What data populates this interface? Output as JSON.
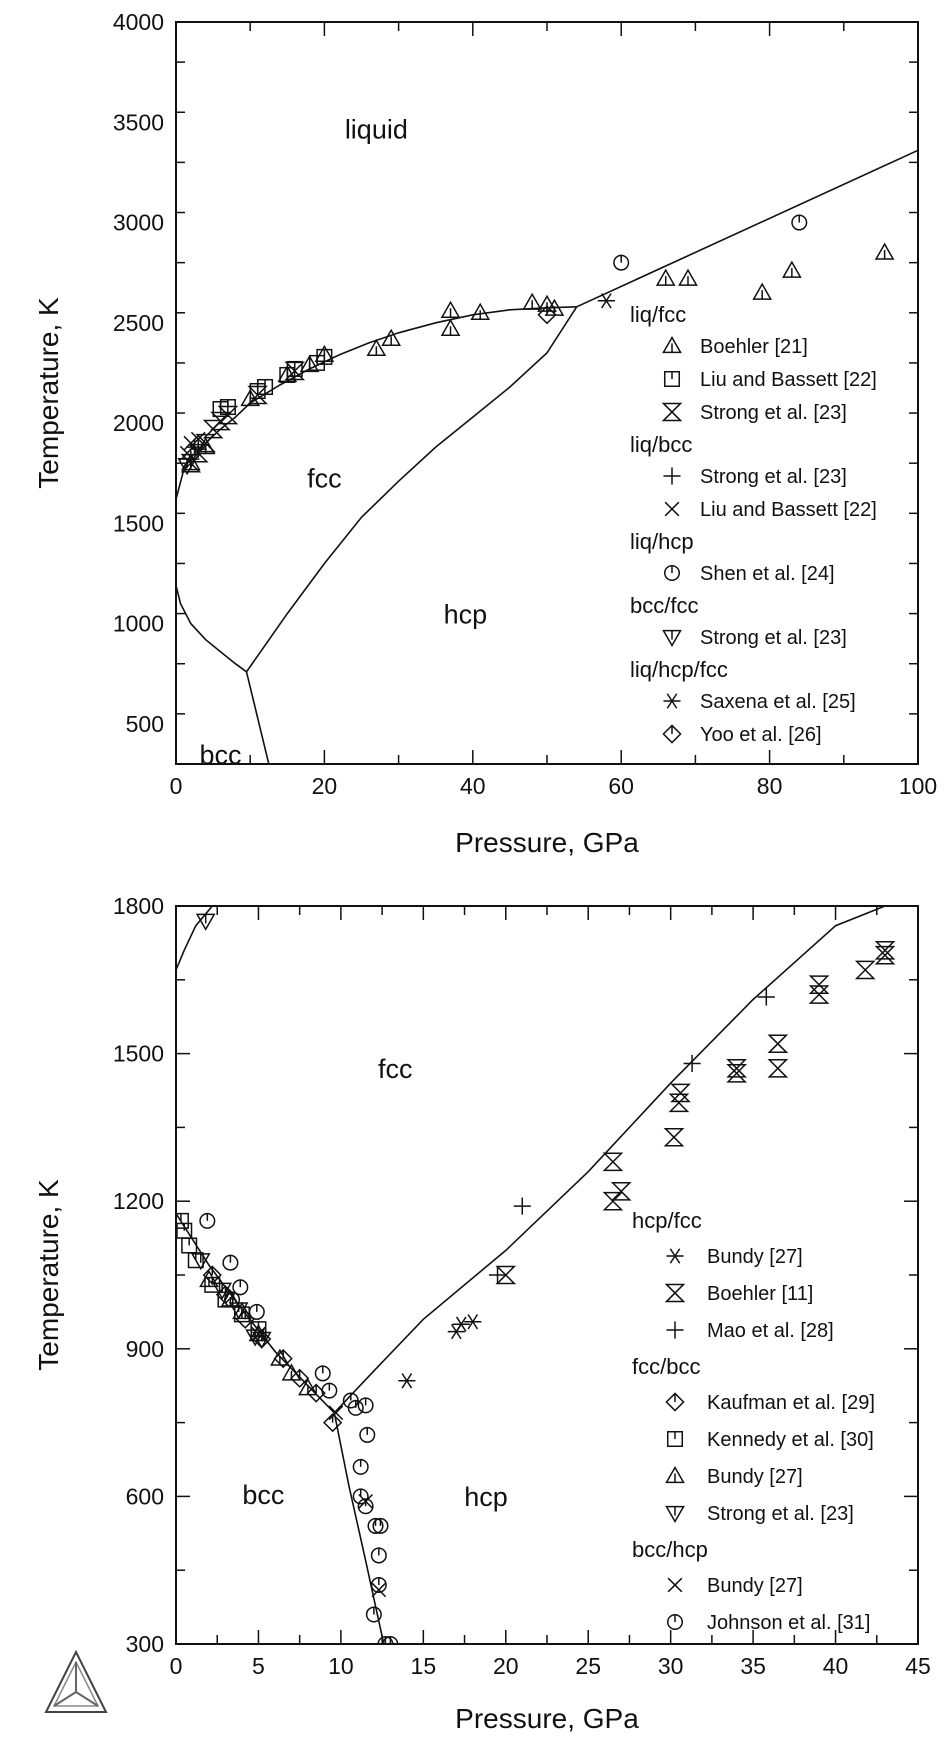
{
  "chart_data": [
    {
      "type": "scatter",
      "xlabel": "Pressure, GPa",
      "ylabel": "Temperature, K",
      "xlim": [
        0,
        100
      ],
      "ylim": [
        300,
        4000
      ],
      "xticks": [
        0,
        20,
        40,
        60,
        80,
        100
      ],
      "yticks": [
        500,
        1000,
        1500,
        2000,
        2500,
        3000,
        3500,
        4000
      ],
      "regions": [
        {
          "label": "liquid",
          "x": 27,
          "y": 3420
        },
        {
          "label": "fcc",
          "x": 20,
          "y": 1680
        },
        {
          "label": "hcp",
          "x": 39,
          "y": 1000
        },
        {
          "label": "bcc",
          "x": 6,
          "y": 300
        }
      ],
      "phase_boundaries": [
        {
          "name": "liq-fcc",
          "points": [
            [
              0,
              1620
            ],
            [
              1,
              1760
            ],
            [
              2,
              1830
            ],
            [
              4,
              1900
            ],
            [
              6,
              1970
            ],
            [
              8,
              2030
            ],
            [
              10,
              2100
            ],
            [
              14,
              2190
            ],
            [
              18,
              2270
            ],
            [
              22,
              2340
            ],
            [
              26,
              2400
            ],
            [
              30,
              2450
            ],
            [
              35,
              2500
            ],
            [
              40,
              2540
            ],
            [
              45,
              2565
            ],
            [
              50,
              2575
            ],
            [
              54,
              2580
            ]
          ]
        },
        {
          "name": "liq-hcp",
          "points": [
            [
              54,
              2580
            ],
            [
              100,
              3360
            ]
          ]
        },
        {
          "name": "fcc-hcp",
          "points": [
            [
              9.5,
              760
            ],
            [
              15,
              1050
            ],
            [
              20,
              1300
            ],
            [
              25,
              1530
            ],
            [
              30,
              1710
            ],
            [
              35,
              1880
            ],
            [
              40,
              2030
            ],
            [
              45,
              2180
            ],
            [
              50,
              2350
            ],
            [
              54,
              2580
            ]
          ]
        },
        {
          "name": "bcc-fcc",
          "points": [
            [
              0,
              1190
            ],
            [
              0.6,
              1100
            ],
            [
              2,
              1000
            ],
            [
              4,
              920
            ],
            [
              6,
              860
            ],
            [
              8,
              800
            ],
            [
              9.5,
              760
            ]
          ]
        },
        {
          "name": "bcc-hcp",
          "points": [
            [
              9.5,
              760
            ],
            [
              12.5,
              300
            ]
          ]
        }
      ],
      "legend": {
        "placement": "lower-right",
        "groups": [
          {
            "title": "liq/fcc",
            "entries": [
              {
                "label": "Boehler [21]",
                "marker": "triangle-bar"
              },
              {
                "label": "Liu and Bassett [22]",
                "marker": "square-bar"
              },
              {
                "label": "Strong et al. [23]",
                "marker": "hourglass"
              }
            ]
          },
          {
            "title": "liq/bcc",
            "entries": [
              {
                "label": "Strong et al. [23]",
                "marker": "plus"
              },
              {
                "label": "Liu and Bassett [22]",
                "marker": "cross"
              }
            ]
          },
          {
            "title": "liq/hcp",
            "entries": [
              {
                "label": "Shen et al. [24]",
                "marker": "circle-bar"
              }
            ]
          },
          {
            "title": "bcc/fcc",
            "entries": [
              {
                "label": "Strong et al. [23]",
                "marker": "triangle-down-bar"
              }
            ]
          },
          {
            "title": "liq/hcp/fcc",
            "entries": [
              {
                "label": "Saxena et al. [25]",
                "marker": "asterisk"
              },
              {
                "label": "Yoo et al. [26]",
                "marker": "diamond-bar"
              }
            ]
          }
        ]
      },
      "series": [
        {
          "marker": "triangle-bar",
          "points": [
            [
              2,
              1800
            ],
            [
              4,
              1880
            ],
            [
              10,
              2120
            ],
            [
              15,
              2240
            ],
            [
              18,
              2290
            ],
            [
              20,
              2340
            ],
            [
              27,
              2370
            ],
            [
              29,
              2420
            ],
            [
              37,
              2470
            ],
            [
              37,
              2560
            ],
            [
              41,
              2550
            ],
            [
              48,
              2600
            ],
            [
              50,
              2590
            ],
            [
              51,
              2570
            ],
            [
              66,
              2720
            ],
            [
              69,
              2720
            ],
            [
              79,
              2650
            ],
            [
              83,
              2760
            ],
            [
              95.5,
              2850
            ]
          ]
        },
        {
          "marker": "square-bar",
          "points": [
            [
              6,
              2070
            ],
            [
              7,
              2080
            ],
            [
              11,
              2160
            ],
            [
              12,
              2180
            ],
            [
              15,
              2240
            ],
            [
              16,
              2270
            ],
            [
              19,
              2300
            ],
            [
              20,
              2330
            ]
          ]
        },
        {
          "marker": "hourglass",
          "points": [
            [
              2,
              1800
            ],
            [
              3,
              1850
            ],
            [
              4,
              1900
            ],
            [
              5,
              1970
            ],
            [
              6,
              2010
            ],
            [
              7,
              2040
            ],
            [
              11,
              2140
            ],
            [
              16,
              2260
            ]
          ]
        },
        {
          "marker": "plus",
          "points": [
            [
              2,
              1820
            ],
            [
              2.5,
              1880
            ],
            [
              3,
              1870
            ]
          ]
        },
        {
          "marker": "cross",
          "points": [
            [
              1.5,
              1850
            ],
            [
              2,
              1900
            ],
            [
              3,
              1920
            ]
          ]
        },
        {
          "marker": "circle-bar",
          "points": [
            [
              60,
              2800
            ],
            [
              84,
              3000
            ]
          ]
        },
        {
          "marker": "triangle-down-bar",
          "points": [
            [
              1.5,
              1790
            ]
          ]
        },
        {
          "marker": "asterisk",
          "points": [
            [
              58,
              2610
            ]
          ]
        },
        {
          "marker": "diamond-bar",
          "points": [
            [
              50,
              2540
            ]
          ]
        }
      ]
    },
    {
      "type": "scatter",
      "xlabel": "Pressure, GPa",
      "ylabel": "Temperature, K",
      "xlim": [
        0,
        45
      ],
      "ylim": [
        300,
        1800
      ],
      "xticks": [
        0,
        5,
        10,
        15,
        20,
        25,
        30,
        35,
        40,
        45
      ],
      "yticks": [
        300,
        600,
        900,
        1200,
        1500,
        1800
      ],
      "regions": [
        {
          "label": "fcc",
          "x": 13.3,
          "y": 1450
        },
        {
          "label": "bcc",
          "x": 5.3,
          "y": 585
        },
        {
          "label": "hcp",
          "x": 18.8,
          "y": 580
        }
      ],
      "phase_boundaries": [
        {
          "name": "liq-fcc",
          "points": [
            [
              0,
              1670
            ],
            [
              0.5,
              1710
            ],
            [
              1.2,
              1760
            ],
            [
              2.2,
              1800
            ]
          ]
        },
        {
          "name": "bcc-fcc",
          "points": [
            [
              0,
              1175
            ],
            [
              2,
              1070
            ],
            [
              4,
              980
            ],
            [
              6,
              895
            ],
            [
              8,
              825
            ],
            [
              9.6,
              770
            ]
          ]
        },
        {
          "name": "fcc-hcp",
          "points": [
            [
              9.6,
              770
            ],
            [
              12,
              855
            ],
            [
              15,
              960
            ],
            [
              20,
              1100
            ],
            [
              25,
              1260
            ],
            [
              30,
              1440
            ],
            [
              35,
              1610
            ],
            [
              40,
              1760
            ],
            [
              43,
              1800
            ]
          ]
        },
        {
          "name": "bcc-hcp",
          "points": [
            [
              9.6,
              770
            ],
            [
              10.5,
              620
            ],
            [
              11.5,
              470
            ],
            [
              12.6,
              300
            ]
          ]
        }
      ],
      "legend": {
        "placement": "lower-right",
        "groups": [
          {
            "title": "hcp/fcc",
            "entries": [
              {
                "label": "Bundy [27]",
                "marker": "asterisk"
              },
              {
                "label": "Boehler [11]",
                "marker": "hourglass"
              },
              {
                "label": "Mao et al. [28]",
                "marker": "plus"
              }
            ]
          },
          {
            "title": "fcc/bcc",
            "entries": [
              {
                "label": "Kaufman et al. [29]",
                "marker": "diamond-bar"
              },
              {
                "label": "Kennedy et al. [30]",
                "marker": "square-bar"
              },
              {
                "label": "Bundy [27]",
                "marker": "triangle-bar"
              },
              {
                "label": "Strong et al. [23]",
                "marker": "triangle-down-bar"
              }
            ]
          },
          {
            "title": "bcc/hcp",
            "entries": [
              {
                "label": "Bundy [27]",
                "marker": "cross"
              },
              {
                "label": "Johnson et al. [31]",
                "marker": "circle-bar"
              }
            ]
          }
        ]
      },
      "series": [
        {
          "marker": "asterisk",
          "points": [
            [
              14,
              835
            ],
            [
              17,
              935
            ],
            [
              17.3,
              950
            ],
            [
              18,
              955
            ]
          ]
        },
        {
          "marker": "hourglass",
          "points": [
            [
              20,
              1050
            ],
            [
              26.5,
              1200
            ],
            [
              26.5,
              1280
            ],
            [
              27,
              1220
            ],
            [
              30.2,
              1330
            ],
            [
              30.5,
              1400
            ],
            [
              30.6,
              1420
            ],
            [
              34,
              1460
            ],
            [
              34,
              1470
            ],
            [
              36.5,
              1470
            ],
            [
              36.5,
              1520
            ],
            [
              39,
              1620
            ],
            [
              39,
              1640
            ],
            [
              41.8,
              1670
            ],
            [
              43,
              1700
            ],
            [
              43,
              1710
            ]
          ]
        },
        {
          "marker": "plus",
          "points": [
            [
              19.5,
              1050
            ],
            [
              21,
              1190
            ],
            [
              31.3,
              1480
            ],
            [
              35.8,
              1615
            ]
          ]
        },
        {
          "marker": "diamond-bar",
          "points": [
            [
              9.5,
              750
            ],
            [
              8.5,
              810
            ],
            [
              7.5,
              840
            ],
            [
              6.5,
              880
            ],
            [
              5.2,
              920
            ],
            [
              4.2,
              960
            ],
            [
              3,
              1010
            ],
            [
              2.2,
              1050
            ]
          ]
        },
        {
          "marker": "square-bar",
          "points": [
            [
              0.3,
              1160
            ],
            [
              0.5,
              1140
            ],
            [
              0.8,
              1110
            ],
            [
              1.2,
              1080
            ],
            [
              2.2,
              1030
            ],
            [
              3,
              1000
            ],
            [
              4,
              970
            ],
            [
              5,
              940
            ]
          ]
        },
        {
          "marker": "triangle-bar",
          "points": [
            [
              2,
              1040
            ],
            [
              3.3,
              1000
            ],
            [
              4,
              975
            ],
            [
              5,
              930
            ],
            [
              6.3,
              880
            ],
            [
              7,
              850
            ],
            [
              8,
              820
            ]
          ]
        },
        {
          "marker": "triangle-down-bar",
          "points": [
            [
              1.5,
              1080
            ],
            [
              2.8,
              1020
            ],
            [
              3.8,
              980
            ],
            [
              4.8,
              925
            ],
            [
              5.2,
              920
            ],
            [
              1.8,
              1770
            ]
          ]
        },
        {
          "marker": "cross",
          "points": [
            [
              5,
              930
            ],
            [
              9.7,
              770
            ],
            [
              11.5,
              590
            ],
            [
              12.3,
              410
            ]
          ]
        },
        {
          "marker": "circle-bar",
          "points": [
            [
              1.9,
              1160
            ],
            [
              3.3,
              1075
            ],
            [
              3.4,
              1000
            ],
            [
              3.9,
              1025
            ],
            [
              4.9,
              975
            ],
            [
              8.9,
              850
            ],
            [
              9.3,
              815
            ],
            [
              10.6,
              795
            ],
            [
              10.9,
              780
            ],
            [
              11.5,
              785
            ],
            [
              11.2,
              660
            ],
            [
              11.2,
              600
            ],
            [
              11.5,
              580
            ],
            [
              11.6,
              725
            ],
            [
              12.1,
              540
            ],
            [
              12.4,
              540
            ],
            [
              12.3,
              480
            ],
            [
              12.3,
              420
            ],
            [
              12,
              360
            ],
            [
              12.7,
              300
            ],
            [
              13,
              300
            ]
          ]
        }
      ]
    }
  ],
  "logo": {
    "name": "thermo-calc-logo"
  }
}
